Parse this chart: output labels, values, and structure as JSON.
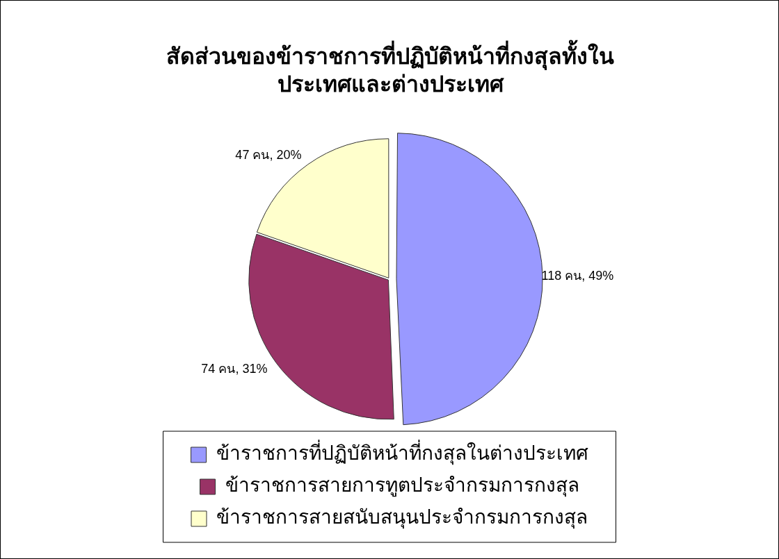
{
  "chart_data": {
    "type": "pie",
    "title": "สัดส่วนของข้าราชการที่ปฏิบัติหน้าที่กงสุลทั้งในประเทศและต่างประเทศ",
    "categories": [
      "ข้าราชการที่ปฏิบัติหน้าที่กงสุลในต่างประเทศ",
      "ข้าราชการสายการทูตประจำกรมการกงสุล",
      "ข้าราชการสายสนับสนุนประจำกรมการกงสุล"
    ],
    "values": [
      118,
      74,
      47
    ],
    "value_labels": [
      "118 คน, 49%",
      "74 คน, 31%",
      "47 คน, 20%"
    ],
    "colors": [
      "#9999ff",
      "#993366",
      "#ffffcc"
    ],
    "legend": "bottom"
  }
}
